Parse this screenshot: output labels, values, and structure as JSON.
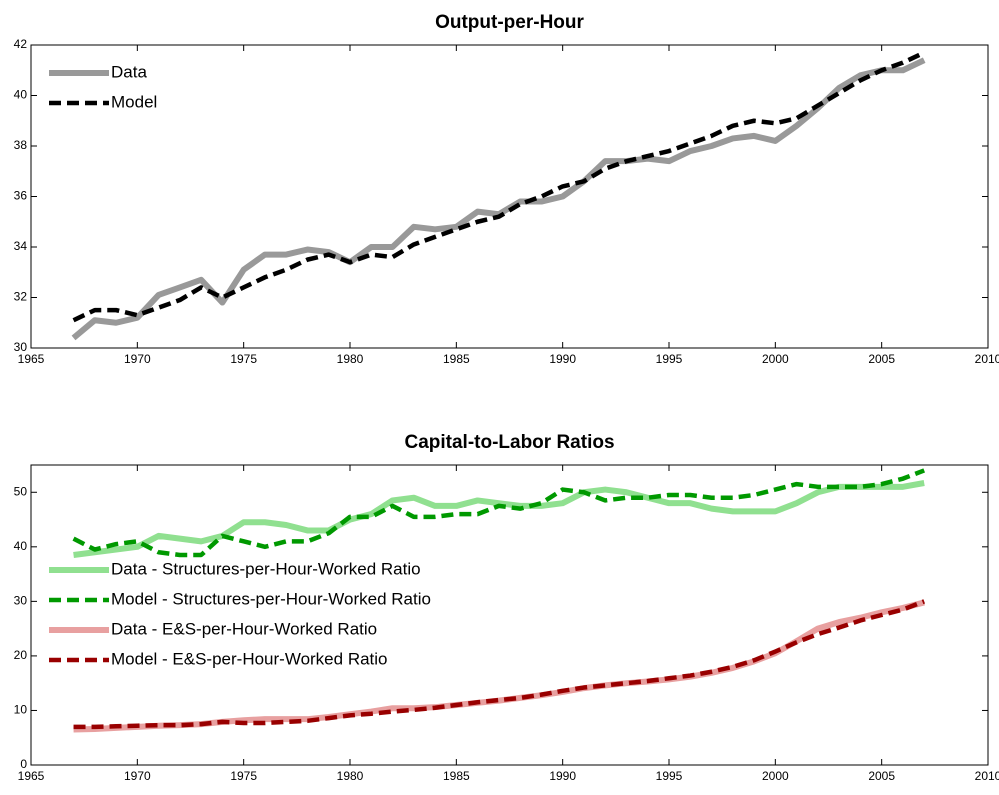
{
  "chart_data": [
    {
      "type": "line",
      "title": "Output-per-Hour",
      "x": [
        1967,
        1968,
        1969,
        1970,
        1971,
        1972,
        1973,
        1974,
        1975,
        1976,
        1977,
        1978,
        1979,
        1980,
        1981,
        1982,
        1983,
        1984,
        1985,
        1986,
        1987,
        1988,
        1989,
        1990,
        1991,
        1992,
        1993,
        1994,
        1995,
        1996,
        1997,
        1998,
        1999,
        2000,
        2001,
        2002,
        2003,
        2004,
        2005,
        2006,
        2007
      ],
      "series": [
        {
          "name": "Data",
          "color": "#999999",
          "style": "solid",
          "values": [
            30.4,
            31.1,
            31.0,
            31.2,
            32.1,
            32.4,
            32.7,
            31.8,
            33.1,
            33.7,
            33.7,
            33.9,
            33.8,
            33.4,
            34.0,
            34.0,
            34.8,
            34.7,
            34.8,
            35.4,
            35.3,
            35.8,
            35.8,
            36.0,
            36.6,
            37.4,
            37.4,
            37.5,
            37.4,
            37.8,
            38.0,
            38.3,
            38.4,
            38.2,
            38.8,
            39.5,
            40.3,
            40.8,
            41.0,
            41.0,
            41.4
          ]
        },
        {
          "name": "Model",
          "color": "#000000",
          "style": "dashed",
          "values": [
            31.1,
            31.5,
            31.5,
            31.3,
            31.6,
            31.9,
            32.4,
            32.0,
            32.4,
            32.8,
            33.1,
            33.5,
            33.7,
            33.4,
            33.7,
            33.6,
            34.1,
            34.4,
            34.7,
            35.0,
            35.2,
            35.7,
            36.0,
            36.4,
            36.6,
            37.1,
            37.4,
            37.6,
            37.8,
            38.1,
            38.4,
            38.8,
            39.0,
            38.9,
            39.1,
            39.6,
            40.1,
            40.6,
            41.0,
            41.3,
            41.7
          ]
        }
      ],
      "xlim": [
        1965,
        2010
      ],
      "xticks": [
        1965,
        1970,
        1975,
        1980,
        1985,
        1990,
        1995,
        2000,
        2005,
        2010
      ],
      "ylim": [
        30,
        42
      ],
      "yticks": [
        30,
        32,
        34,
        36,
        38,
        40,
        42
      ],
      "legend": "northwest"
    },
    {
      "type": "line",
      "title": "Capital-to-Labor Ratios",
      "x": [
        1967,
        1968,
        1969,
        1970,
        1971,
        1972,
        1973,
        1974,
        1975,
        1976,
        1977,
        1978,
        1979,
        1980,
        1981,
        1982,
        1983,
        1984,
        1985,
        1986,
        1987,
        1988,
        1989,
        1990,
        1991,
        1992,
        1993,
        1994,
        1995,
        1996,
        1997,
        1998,
        1999,
        2000,
        2001,
        2002,
        2003,
        2004,
        2005,
        2006,
        2007
      ],
      "series": [
        {
          "name": "Data - Structures-per-Hour-Worked Ratio",
          "color": "#90e090",
          "style": "solid",
          "values": [
            38.5,
            39,
            39.5,
            40,
            42,
            41.5,
            41,
            42,
            44.5,
            44.5,
            44,
            43,
            43,
            45,
            46,
            48.5,
            49,
            47.5,
            47.5,
            48.5,
            48,
            47.5,
            47.5,
            48,
            50,
            50.5,
            50,
            49,
            48,
            48,
            47,
            46.5,
            46.5,
            46.5,
            48,
            50,
            51,
            51,
            51,
            51,
            51.7
          ]
        },
        {
          "name": "Model - Structures-per-Hour-Worked Ratio",
          "color": "#009900",
          "style": "dashed",
          "values": [
            41.5,
            39.5,
            40.5,
            41,
            39,
            38.5,
            38.5,
            42,
            41,
            40,
            41,
            41,
            42.5,
            45.5,
            45.5,
            47.5,
            45.5,
            45.5,
            46,
            46,
            47.5,
            47,
            48,
            50.5,
            50,
            48.5,
            49,
            49,
            49.5,
            49.5,
            49,
            49,
            49.5,
            50.5,
            51.5,
            51,
            51,
            51,
            51.5,
            52.5,
            54
          ]
        },
        {
          "name": "Data - E&S-per-Hour-Worked Ratio",
          "color": "#e8a0a0",
          "style": "solid",
          "values": [
            6.5,
            6.6,
            6.8,
            7.0,
            7.2,
            7.3,
            7.5,
            7.9,
            8.2,
            8.4,
            8.4,
            8.4,
            8.8,
            9.3,
            9.8,
            10.4,
            10.4,
            10.6,
            11.0,
            11.4,
            11.8,
            12.3,
            12.8,
            13.4,
            14.1,
            14.6,
            15.0,
            15.3,
            15.7,
            16.2,
            16.9,
            17.8,
            19.0,
            20.5,
            22.7,
            25.0,
            26.2,
            27.0,
            28.0,
            28.8,
            29.8
          ]
        },
        {
          "name": "Model - E&S-per-Hour-Worked Ratio",
          "color": "#990000",
          "style": "dashed",
          "values": [
            7.0,
            7.0,
            7.1,
            7.2,
            7.3,
            7.3,
            7.5,
            7.9,
            7.7,
            7.7,
            7.9,
            8.1,
            8.6,
            9.1,
            9.4,
            9.8,
            10.1,
            10.5,
            11.0,
            11.5,
            11.9,
            12.3,
            12.9,
            13.6,
            14.2,
            14.6,
            15.0,
            15.4,
            15.9,
            16.4,
            17.1,
            18.0,
            19.2,
            20.8,
            22.5,
            24.0,
            25.2,
            26.5,
            27.5,
            28.5,
            30.0
          ]
        }
      ],
      "xlim": [
        1965,
        2010
      ],
      "xticks": [
        1965,
        1970,
        1975,
        1980,
        1985,
        1990,
        1995,
        2000,
        2005,
        2010
      ],
      "ylim": [
        0,
        55
      ],
      "yticks": [
        0,
        10,
        20,
        30,
        40,
        50
      ],
      "legend": "west"
    }
  ]
}
